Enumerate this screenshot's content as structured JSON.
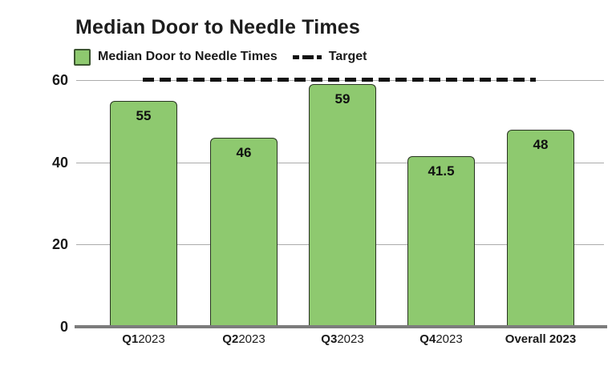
{
  "title": "Median Door to Needle Times",
  "legend": {
    "series_label": "Median Door to Needle Times",
    "target_label": "Target"
  },
  "colors": {
    "bar_fill": "#8ec96f",
    "bar_border": "#283321",
    "swatch_border": "#3c5530",
    "target_line": "#131313",
    "gridline": "#ababab",
    "axis_line": "#7c7c7c",
    "text": "#1a1a1a"
  },
  "chart_data": {
    "type": "bar",
    "title": "Median Door to Needle Times",
    "categories": [
      "Q1 2023",
      "Q2 2023",
      "Q3 2023",
      "Q4 2023",
      "Overall 2023"
    ],
    "category_labels": [
      {
        "bold": "Q1",
        "rest": "2023"
      },
      {
        "bold": "Q2",
        "rest": "2023"
      },
      {
        "bold": "Q3",
        "rest": "2023"
      },
      {
        "bold": "Q4",
        "rest": "2023"
      },
      {
        "bold": "Overall 2023",
        "rest": ""
      }
    ],
    "series": [
      {
        "name": "Median Door to Needle Times",
        "type": "bar",
        "values": [
          55,
          46,
          59,
          41.5,
          48
        ]
      },
      {
        "name": "Target",
        "type": "dashed-line",
        "values": [
          60,
          60,
          60,
          60,
          60
        ]
      }
    ],
    "values": [
      55,
      46,
      59,
      41.5,
      48
    ],
    "target_value": 60,
    "xlabel": "",
    "ylabel": "",
    "ylim": [
      0,
      60
    ],
    "yticks": [
      0,
      20,
      40,
      60
    ],
    "grid": true,
    "legend_position": "top-left",
    "background": "#ffffff"
  }
}
